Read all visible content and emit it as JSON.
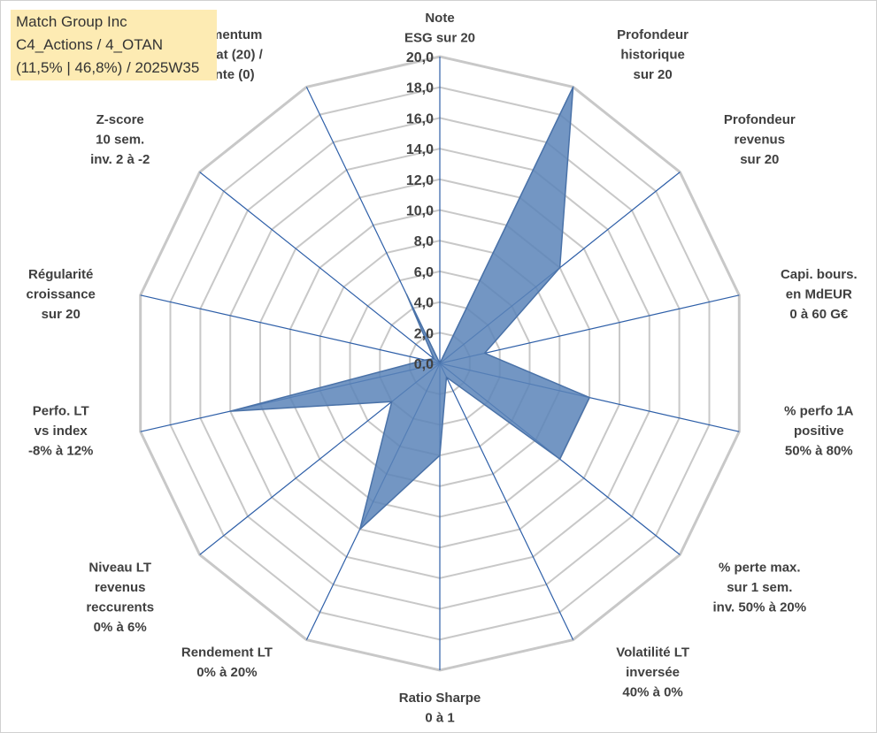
{
  "info_box": {
    "line1": "Match Group Inc",
    "line2": "C4_Actions / 4_OTAN",
    "line3": "(11,5% | 46,8%) / 2025W35"
  },
  "colors": {
    "fill": "#5b84b8",
    "stroke": "#4a72a8",
    "spoke": "#2e5fa8",
    "grid": "#c8c8c8",
    "text": "#404040",
    "info_bg": "#fdebb3"
  },
  "chart_data": {
    "type": "radar",
    "rmin": 0,
    "rmax": 20,
    "tick_labels": [
      "0,0",
      "2,0",
      "4,0",
      "6,0",
      "8,0",
      "10,0",
      "12,0",
      "14,0",
      "16,0",
      "18,0",
      "20,0"
    ],
    "axes": [
      {
        "label": [
          "Note",
          "ESG sur 20"
        ],
        "value": 0
      },
      {
        "label": [
          "Profondeur",
          "historique",
          "sur 20"
        ],
        "value": 20
      },
      {
        "label": [
          "Profondeur",
          "revenus",
          "sur 20"
        ],
        "value": 10
      },
      {
        "label": [
          "Capi. bours.",
          "en MdEUR",
          "0 à 60 G€"
        ],
        "value": 3
      },
      {
        "label": [
          "% perfo 1A",
          "positive",
          "50% à 80%"
        ],
        "value": 10
      },
      {
        "label": [
          "% perte max.",
          "sur 1 sem.",
          "inv. 50% à 20%"
        ],
        "value": 10
      },
      {
        "label": [
          "Volatilité LT",
          "inversée",
          "40% à 0%"
        ],
        "value": 1
      },
      {
        "label": [
          "Ratio Sharpe",
          "0 à 1"
        ],
        "value": 6
      },
      {
        "label": [
          "Rendement LT",
          "0% à 20%"
        ],
        "value": 12
      },
      {
        "label": [
          "Niveau LT",
          "revenus",
          "reccurents",
          "0% à 6%"
        ],
        "value": 4
      },
      {
        "label": [
          "Perfo. LT",
          "vs index",
          "-8% à 12%"
        ],
        "value": 14
      },
      {
        "label": [
          "Régularité",
          "croissance",
          "sur 20"
        ],
        "value": 1
      },
      {
        "label": [
          "Z-score",
          "10 sem.",
          "inv. 2 à -2"
        ],
        "value": 0.5
      },
      {
        "label": [
          "Momentum",
          "Achat (20) /",
          "Vente (0)"
        ],
        "value": 5
      }
    ]
  }
}
